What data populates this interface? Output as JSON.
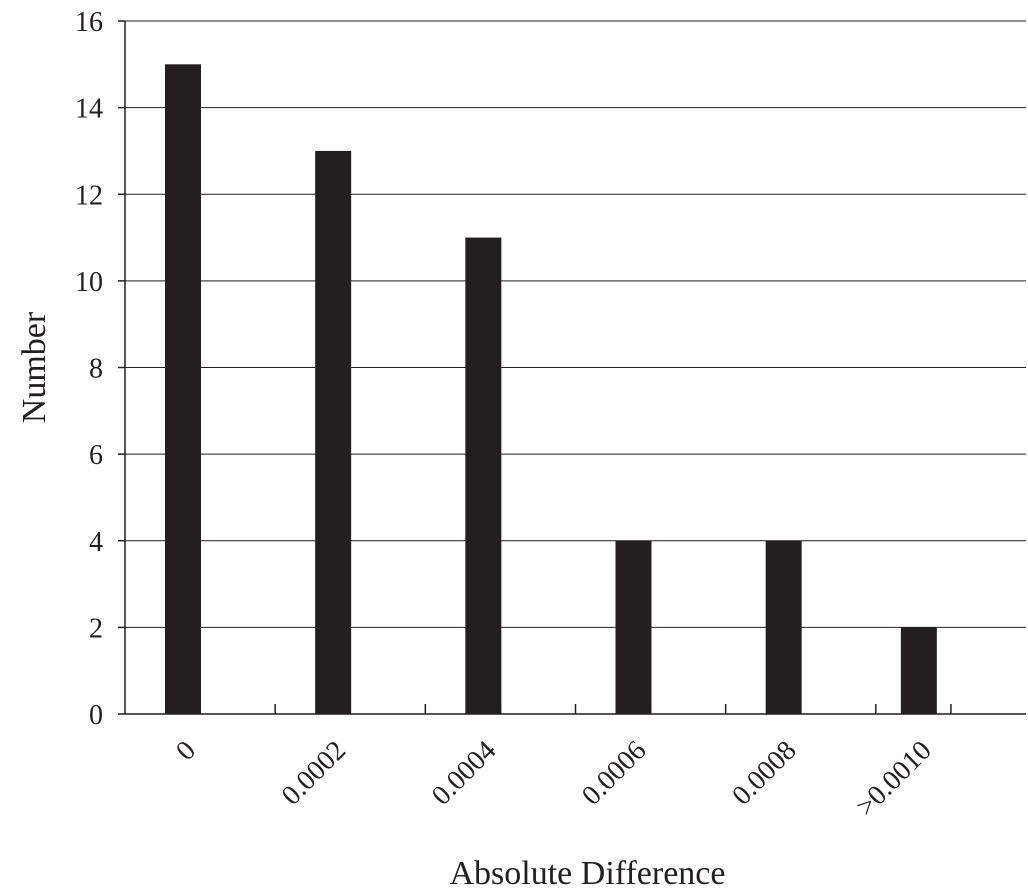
{
  "chart_data": {
    "type": "bar",
    "categories": [
      "0",
      "0.0002",
      "0.0004",
      "0.0006",
      "0.0008",
      ">0.0010"
    ],
    "values": [
      15,
      13,
      11,
      4,
      4,
      2
    ],
    "title": "",
    "xlabel": "Absolute Difference",
    "ylabel": "Number",
    "ylim": [
      0,
      16
    ],
    "yticks": [
      0,
      2,
      4,
      6,
      8,
      10,
      12,
      14,
      16
    ],
    "grid": true,
    "bar_color": "#231f20"
  }
}
